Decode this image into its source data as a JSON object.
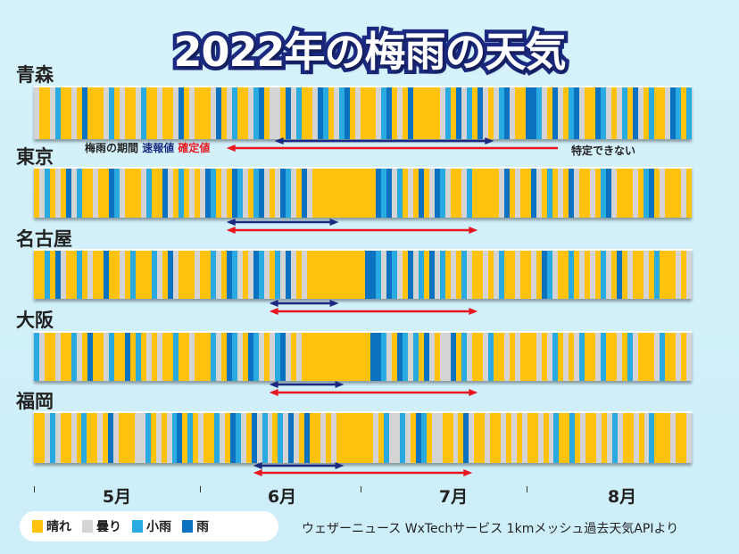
{
  "chart_data": {
    "type": "heatmap",
    "title": "2022年の梅雨の天気",
    "period": {
      "start": "5/1",
      "end": "8/31",
      "days": 123
    },
    "months": [
      "5月",
      "6月",
      "7月",
      "8月"
    ],
    "month_start_offsets": [
      0,
      31,
      61,
      92
    ],
    "categories": {
      "s": {
        "label": "晴れ",
        "color": "#ffc20e"
      },
      "c": {
        "label": "曇り",
        "color": "#d4d4d4"
      },
      "l": {
        "label": "小雨",
        "color": "#29abe2"
      },
      "r": {
        "label": "雨",
        "color": "#0a72c0"
      }
    },
    "cities": [
      {
        "name": "青森",
        "days": [
          "cssclsscsrsssclscssclsscsscrscs",
          "sscrsclssclrsccsrclsscrlsclrsc",
          "sssclrscsrsssssclsrclsrcsclrcss",
          "rrlcsrcslrcssrlcsclsrcslsscrlsl"
        ],
        "rainy_season_preliminary": {
          "start": "6/15",
          "end": "7/26"
        },
        "rainy_season_final": {
          "start": "6/6",
          "end": null,
          "note": "特定できない"
        }
      },
      {
        "name": "東京",
        "days": [
          "sclscsrclsscssrlcsssclssrcslscs",
          "crlscsrlcslrcscrlcsrcsssssssss",
          "sssrlrclscsrscrlcsscLssssscrscs",
          "srcslscsrcsscslrcssscslrscsssc s"
        ],
        "rainy_season_preliminary": {
          "start": "6/6",
          "end": "6/27"
        },
        "rainy_season_final": {
          "start": "6/6",
          "end": "7/23"
        }
      },
      {
        "name": "名古屋",
        "days": [
          "sslsrcsslscssrsscslssslcsrcsssc",
          "sslcsrlcscrlcslcrcscssssssssss",
          "srrlcrlcsrclsrclscslcsscsclsscs",
          "scsrlcsslscscslcsrscsscslssscsc"
        ],
        "rainy_season_preliminary": {
          "start": "6/14",
          "end": "6/27"
        },
        "rainy_season_final": {
          "start": "6/14",
          "end": "7/23"
        }
      },
      {
        "name": "大阪",
        "days": [
          "lcsscsslcsrssclssrslscscsslsscs",
          "sslcsrlcsrlcsclrcscsssssssssss",
          "ssrrlcsrlclsrcsccrslcssclsscscs",
          "sscsclscsclssclsscslcsssclsscsc"
        ],
        "rainy_season_preliminary": {
          "start": "6/14",
          "end": "6/28"
        },
        "rainy_season_final": {
          "start": "6/14",
          "end": "7/23"
        }
      },
      {
        "name": "福岡",
        "days": [
          "ssclcsscslsscsrcssscclscsclrslsc",
          "sslcsrlcsrclcslcrcsrsscscsssss",
          "sscslcclcsrlsccsscsrcsscsscscsc",
          "sscsclsslscsscsclcsscsclssscssc"
        ],
        "rainy_season_preliminary": {
          "start": "6/11",
          "end": "6/28"
        },
        "rainy_season_final": {
          "start": "6/11",
          "end": "7/22"
        }
      }
    ],
    "series_colors": {
      "preliminary": "#1b2a80",
      "final": "#e8161e"
    }
  },
  "legend": {
    "period_label": "梅雨の期間",
    "preliminary_label": "速報値",
    "final_label": "確定値",
    "undetermined_label": "特定できない",
    "items": [
      {
        "label": "晴れ",
        "color": "#ffc20e"
      },
      {
        "label": "曇り",
        "color": "#d4d4d4"
      },
      {
        "label": "小雨",
        "color": "#29abe2"
      },
      {
        "label": "雨",
        "color": "#0a72c0"
      }
    ]
  },
  "source": "ウェザーニュース WxTechサービス 1kmメッシュ過去天気APIより"
}
